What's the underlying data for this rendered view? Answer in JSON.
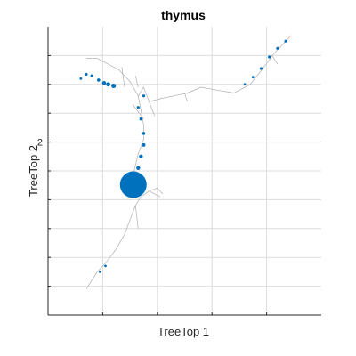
{
  "chart_data": {
    "type": "scatter",
    "title": "thymus",
    "xlabel": "TreeTop 1",
    "ylabel": "TreeTop 2",
    "grid": true,
    "xlim": [
      0,
      10
    ],
    "ylim": [
      0,
      10
    ],
    "x_ticks": [
      2,
      4,
      6,
      8
    ],
    "y_ticks": [
      1,
      2,
      3,
      4,
      5,
      6,
      7,
      8,
      9
    ],
    "y_tick_labels": [
      {
        "value": 6,
        "label": "2"
      }
    ],
    "colors": {
      "point": "#0072bd",
      "tree": "#b0b0b0",
      "grid": "#dcdcdc",
      "axis": "#262626"
    },
    "tree_edges": [
      [
        [
          1.4,
          0.9
        ],
        [
          1.6,
          1.2
        ],
        [
          1.8,
          1.5
        ],
        [
          2.1,
          1.8
        ],
        [
          2.5,
          2.3
        ],
        [
          2.8,
          2.8
        ],
        [
          3.0,
          3.3
        ],
        [
          3.2,
          3.8
        ],
        [
          3.4,
          4.1
        ],
        [
          3.7,
          4.3
        ],
        [
          4.0,
          4.4
        ],
        [
          4.2,
          4.2
        ]
      ],
      [
        [
          3.2,
          3.8
        ],
        [
          3.3,
          3.0
        ]
      ],
      [
        [
          3.7,
          4.3
        ],
        [
          4.1,
          4.1
        ]
      ],
      [
        [
          3.1,
          4.8
        ],
        [
          3.3,
          5.6
        ],
        [
          3.5,
          6.1
        ],
        [
          3.5,
          6.6
        ],
        [
          3.4,
          7.1
        ],
        [
          3.3,
          7.6
        ],
        [
          3.5,
          7.9
        ],
        [
          3.7,
          7.4
        ],
        [
          4.1,
          7.5
        ],
        [
          4.6,
          7.6
        ],
        [
          5.1,
          7.7
        ],
        [
          5.6,
          7.9
        ],
        [
          6.2,
          7.8
        ],
        [
          6.8,
          7.7
        ],
        [
          7.4,
          8.0
        ],
        [
          7.9,
          8.6
        ],
        [
          8.3,
          9.1
        ],
        [
          8.9,
          9.7
        ]
      ],
      [
        [
          3.3,
          7.6
        ],
        [
          3.0,
          8.1
        ],
        [
          2.6,
          8.5
        ],
        [
          2.2,
          8.7
        ],
        [
          1.8,
          8.9
        ],
        [
          1.4,
          8.9
        ]
      ],
      [
        [
          3.1,
          7.3
        ],
        [
          3.5,
          6.8
        ]
      ],
      [
        [
          3.7,
          7.4
        ],
        [
          3.9,
          6.9
        ]
      ],
      [
        [
          2.7,
          8.6
        ],
        [
          2.8,
          7.9
        ]
      ],
      [
        [
          5.0,
          7.7
        ],
        [
          5.1,
          7.4
        ]
      ],
      [
        [
          8.2,
          9.0
        ],
        [
          8.4,
          8.7
        ]
      ],
      [
        [
          3.3,
          7.9
        ],
        [
          3.2,
          8.3
        ]
      ]
    ],
    "points": [
      {
        "x": 3.12,
        "y": 4.52,
        "size": 15
      },
      {
        "x": 3.3,
        "y": 5.1,
        "size": 2.2
      },
      {
        "x": 3.4,
        "y": 5.5,
        "size": 2.2
      },
      {
        "x": 3.5,
        "y": 5.9,
        "size": 2
      },
      {
        "x": 3.5,
        "y": 6.3,
        "size": 1.8
      },
      {
        "x": 3.4,
        "y": 6.8,
        "size": 1.8
      },
      {
        "x": 3.3,
        "y": 7.2,
        "size": 1.6
      },
      {
        "x": 3.5,
        "y": 7.6,
        "size": 1.6
      },
      {
        "x": 2.4,
        "y": 7.95,
        "size": 2.6
      },
      {
        "x": 2.2,
        "y": 8.0,
        "size": 2.4
      },
      {
        "x": 2.05,
        "y": 8.05,
        "size": 2.2
      },
      {
        "x": 1.85,
        "y": 8.15,
        "size": 1.8
      },
      {
        "x": 1.6,
        "y": 8.3,
        "size": 1.6
      },
      {
        "x": 1.4,
        "y": 8.35,
        "size": 1.6
      },
      {
        "x": 1.2,
        "y": 8.2,
        "size": 1.4
      },
      {
        "x": 8.7,
        "y": 9.5,
        "size": 1.6
      },
      {
        "x": 8.4,
        "y": 9.25,
        "size": 1.6
      },
      {
        "x": 8.1,
        "y": 8.95,
        "size": 1.6
      },
      {
        "x": 7.8,
        "y": 8.55,
        "size": 1.6
      },
      {
        "x": 7.5,
        "y": 8.25,
        "size": 1.4
      },
      {
        "x": 7.2,
        "y": 8.0,
        "size": 1.4
      },
      {
        "x": 1.9,
        "y": 1.5,
        "size": 1.4
      },
      {
        "x": 2.1,
        "y": 1.7,
        "size": 1.4
      }
    ]
  }
}
